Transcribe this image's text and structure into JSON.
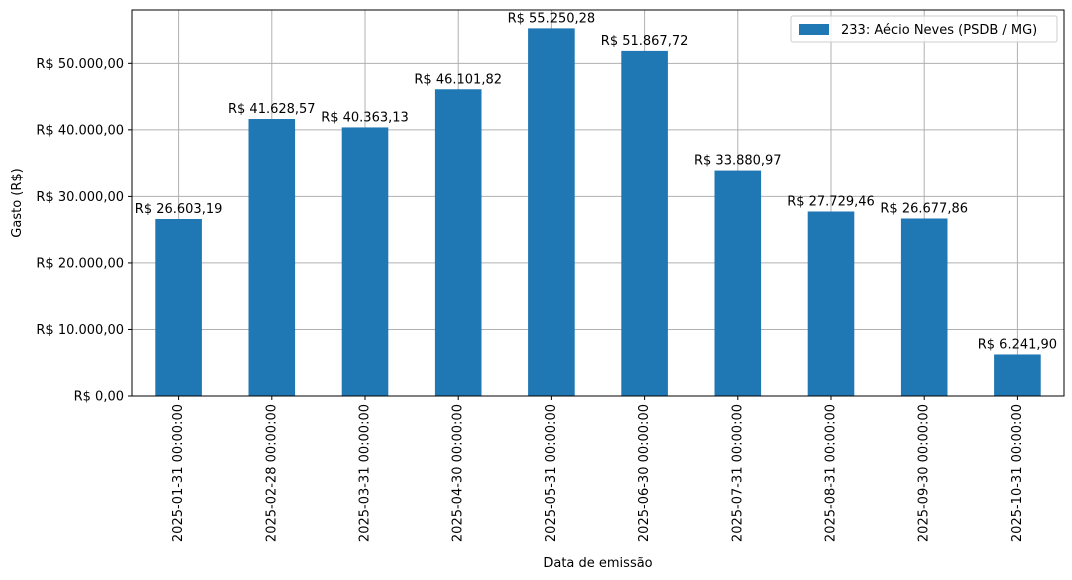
{
  "chart_data": {
    "type": "bar",
    "categories": [
      "2025-01-31 00:00:00",
      "2025-02-28 00:00:00",
      "2025-03-31 00:00:00",
      "2025-04-30 00:00:00",
      "2025-05-31 00:00:00",
      "2025-06-30 00:00:00",
      "2025-07-31 00:00:00",
      "2025-08-31 00:00:00",
      "2025-09-30 00:00:00",
      "2025-10-31 00:00:00"
    ],
    "series": [
      {
        "name": "233: Aécio Neves (PSDB / MG)",
        "color": "#1f77b4",
        "values": [
          26603.19,
          41628.57,
          40363.13,
          46101.82,
          55250.28,
          51867.72,
          33880.97,
          27729.46,
          26677.86,
          6241.9
        ]
      }
    ],
    "data_labels": [
      "R$ 26.603,19",
      "R$ 41.628,57",
      "R$ 40.363,13",
      "R$ 46.101,82",
      "R$ 55.250,28",
      "R$ 51.867,72",
      "R$ 33.880,97",
      "R$ 27.729,46",
      "R$ 26.677,86",
      "R$ 6.241,90"
    ],
    "xlabel": "Data de emissão",
    "ylabel": "Gasto (R$)",
    "ylim": [
      0,
      58013.29
    ],
    "yticks": [
      0,
      10000,
      20000,
      30000,
      40000,
      50000
    ],
    "ytick_labels": [
      "R$ 0,00",
      "R$ 10.000,00",
      "R$ 20.000,00",
      "R$ 30.000,00",
      "R$ 40.000,00",
      "R$ 50.000,00"
    ],
    "grid": true,
    "legend_position": "top-right"
  }
}
